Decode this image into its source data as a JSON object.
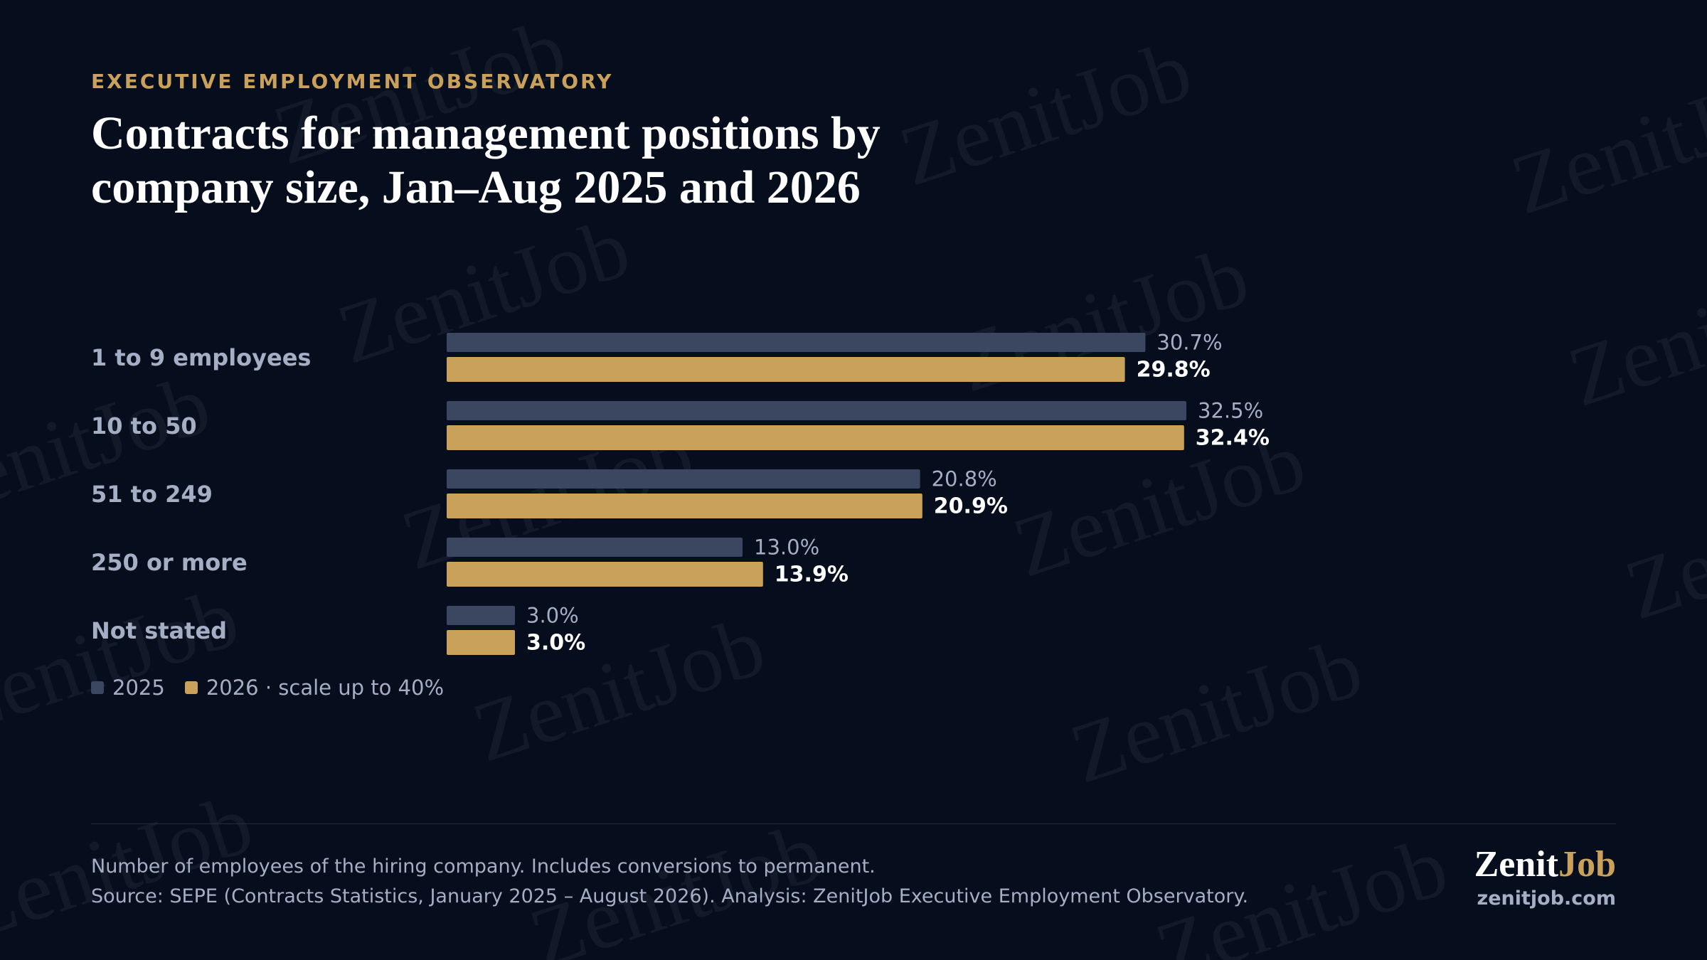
{
  "header": {
    "eyebrow": "EXECUTIVE EMPLOYMENT OBSERVATORY",
    "title": "Contracts for management positions by company size, Jan–Aug 2025 and 2026"
  },
  "chart_data": {
    "type": "bar",
    "orientation": "horizontal",
    "categories": [
      "1 to 9 employees",
      "10 to 50",
      "51 to 249",
      "250 or more",
      "Not stated"
    ],
    "series": [
      {
        "name": "2025",
        "values": [
          30.7,
          32.5,
          20.8,
          13.0,
          3.0
        ],
        "labels": [
          "30.7%",
          "32.5%",
          "20.8%",
          "13.0%",
          "3.0%"
        ],
        "color": "#3b4660"
      },
      {
        "name": "2026",
        "values": [
          29.8,
          32.4,
          20.9,
          13.9,
          3.0
        ],
        "labels": [
          "29.8%",
          "32.4%",
          "20.9%",
          "13.9%",
          "3.0%"
        ],
        "color": "#c9a15a"
      }
    ],
    "xlim": [
      0,
      40
    ],
    "grid": false,
    "legend_position": "bottom-left"
  },
  "legend": {
    "item_2025": "2025",
    "item_2026": "2026 · scale up to 40%"
  },
  "footer": {
    "note": "Number of employees of the hiring company. Includes conversions to permanent.",
    "source": "Source: SEPE (Contracts Statistics, January 2025 – August 2026). Analysis: ZenitJob Executive Employment Observatory."
  },
  "brand": {
    "name_part1": "Zenit",
    "name_part2": "Job",
    "url": "zenitjob.com",
    "watermark": "ZenitJob"
  },
  "colors": {
    "background": "#060d1c",
    "accent": "#c9a15a",
    "bar_2025": "#3b4660",
    "text_muted": "#a4aec4"
  }
}
